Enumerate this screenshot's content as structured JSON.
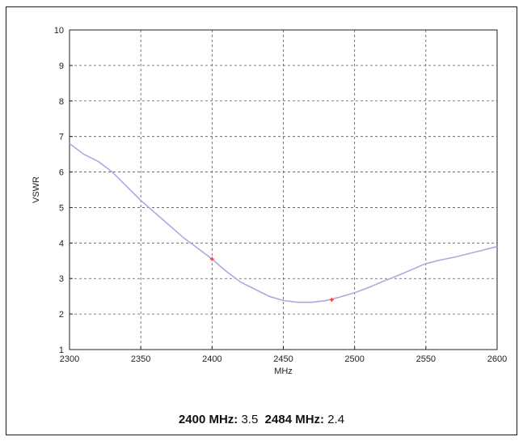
{
  "chart_data": {
    "type": "line",
    "title": "",
    "xlabel": "MHz",
    "ylabel": "VSWR",
    "xlim": [
      2300,
      2600
    ],
    "ylim": [
      1,
      10
    ],
    "xticks": [
      2300,
      2350,
      2400,
      2450,
      2500,
      2550,
      2600
    ],
    "yticks": [
      1,
      2,
      3,
      4,
      5,
      6,
      7,
      8,
      9,
      10
    ],
    "grid": true,
    "series": [
      {
        "color": "#aaaae0",
        "x": [
          2300,
          2310,
          2320,
          2330,
          2340,
          2350,
          2360,
          2370,
          2380,
          2390,
          2400,
          2410,
          2420,
          2430,
          2440,
          2450,
          2460,
          2470,
          2480,
          2490,
          2500,
          2510,
          2520,
          2530,
          2540,
          2550,
          2560,
          2570,
          2580,
          2590,
          2600
        ],
        "y": [
          6.8,
          6.5,
          6.3,
          6.0,
          5.6,
          5.2,
          4.85,
          4.5,
          4.15,
          3.85,
          3.55,
          3.2,
          2.9,
          2.7,
          2.5,
          2.38,
          2.33,
          2.33,
          2.38,
          2.48,
          2.6,
          2.75,
          2.92,
          3.08,
          3.25,
          3.42,
          3.52,
          3.6,
          3.7,
          3.8,
          3.9
        ]
      }
    ],
    "markers": [
      {
        "x": 2400,
        "y": 3.55,
        "color": "#e04040"
      },
      {
        "x": 2484,
        "y": 2.4,
        "color": "#e04040"
      }
    ]
  },
  "caption": {
    "label1": "2400 MHz:",
    "value1": "3.5",
    "label2": "2484 MHz:",
    "value2": "2.4"
  }
}
